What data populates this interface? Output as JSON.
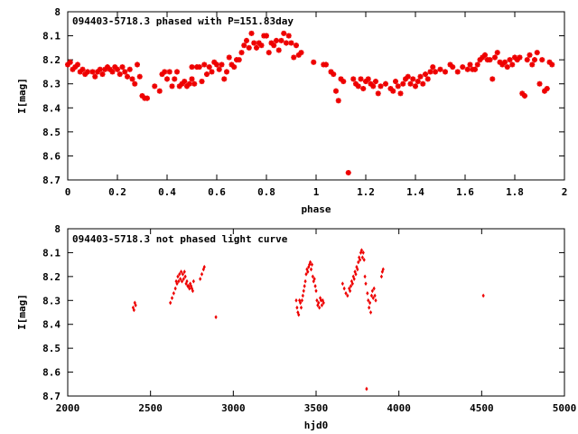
{
  "colors": {
    "points": "#ee0000",
    "frame": "#000000",
    "background": "#ffffff"
  },
  "chart_data": [
    {
      "type": "scatter",
      "title": "094403-5718.3 phased with P=151.83day",
      "xlabel": "phase",
      "ylabel": "I[mag]",
      "xlim": [
        0,
        2
      ],
      "ylim": [
        8.7,
        8
      ],
      "y_inverted": true,
      "grid": false,
      "xticks": [
        "0",
        "0.2",
        "0.4",
        "0.6",
        "0.8",
        "1",
        "1.2",
        "1.4",
        "1.6",
        "1.8",
        "2"
      ],
      "yticks": [
        "8",
        "8.1",
        "8.2",
        "8.3",
        "8.4",
        "8.5",
        "8.6",
        "8.7"
      ],
      "marker": "star",
      "points": [
        [
          0.0,
          8.22
        ],
        [
          0.01,
          8.21
        ],
        [
          0.02,
          8.24
        ],
        [
          0.03,
          8.23
        ],
        [
          0.04,
          8.22
        ],
        [
          0.05,
          8.25
        ],
        [
          0.06,
          8.24
        ],
        [
          0.07,
          8.26
        ],
        [
          0.08,
          8.25
        ],
        [
          0.1,
          8.25
        ],
        [
          0.11,
          8.27
        ],
        [
          0.12,
          8.25
        ],
        [
          0.13,
          8.24
        ],
        [
          0.14,
          8.26
        ],
        [
          0.15,
          8.24
        ],
        [
          0.16,
          8.23
        ],
        [
          0.17,
          8.24
        ],
        [
          0.18,
          8.25
        ],
        [
          0.19,
          8.23
        ],
        [
          0.2,
          8.24
        ],
        [
          0.21,
          8.26
        ],
        [
          0.22,
          8.23
        ],
        [
          0.23,
          8.25
        ],
        [
          0.24,
          8.27
        ],
        [
          0.25,
          8.24
        ],
        [
          0.26,
          8.28
        ],
        [
          0.27,
          8.3
        ],
        [
          0.28,
          8.22
        ],
        [
          0.29,
          8.27
        ],
        [
          0.3,
          8.35
        ],
        [
          0.31,
          8.36
        ],
        [
          0.32,
          8.36
        ],
        [
          0.35,
          8.31
        ],
        [
          0.37,
          8.33
        ],
        [
          0.38,
          8.26
        ],
        [
          0.39,
          8.25
        ],
        [
          0.4,
          8.28
        ],
        [
          0.41,
          8.25
        ],
        [
          0.42,
          8.31
        ],
        [
          0.43,
          8.28
        ],
        [
          0.44,
          8.25
        ],
        [
          0.45,
          8.31
        ],
        [
          0.46,
          8.3
        ],
        [
          0.47,
          8.29
        ],
        [
          0.48,
          8.31
        ],
        [
          0.49,
          8.3
        ],
        [
          0.5,
          8.28
        ],
        [
          0.5,
          8.23
        ],
        [
          0.51,
          8.3
        ],
        [
          0.52,
          8.23
        ],
        [
          0.53,
          8.23
        ],
        [
          0.54,
          8.29
        ],
        [
          0.55,
          8.22
        ],
        [
          0.56,
          8.26
        ],
        [
          0.57,
          8.23
        ],
        [
          0.58,
          8.25
        ],
        [
          0.59,
          8.21
        ],
        [
          0.6,
          8.22
        ],
        [
          0.61,
          8.24
        ],
        [
          0.62,
          8.22
        ],
        [
          0.63,
          8.28
        ],
        [
          0.64,
          8.25
        ],
        [
          0.65,
          8.19
        ],
        [
          0.66,
          8.22
        ],
        [
          0.67,
          8.23
        ],
        [
          0.68,
          8.2
        ],
        [
          0.69,
          8.2
        ],
        [
          0.7,
          8.17
        ],
        [
          0.71,
          8.14
        ],
        [
          0.72,
          8.12
        ],
        [
          0.73,
          8.15
        ],
        [
          0.74,
          8.09
        ],
        [
          0.75,
          8.13
        ],
        [
          0.76,
          8.15
        ],
        [
          0.77,
          8.13
        ],
        [
          0.78,
          8.14
        ],
        [
          0.79,
          8.1
        ],
        [
          0.8,
          8.1
        ],
        [
          0.81,
          8.17
        ],
        [
          0.82,
          8.13
        ],
        [
          0.83,
          8.14
        ],
        [
          0.84,
          8.12
        ],
        [
          0.85,
          8.16
        ],
        [
          0.86,
          8.12
        ],
        [
          0.87,
          8.09
        ],
        [
          0.88,
          8.13
        ],
        [
          0.89,
          8.1
        ],
        [
          0.9,
          8.13
        ],
        [
          0.91,
          8.19
        ],
        [
          0.92,
          8.14
        ],
        [
          0.93,
          8.18
        ],
        [
          0.94,
          8.17
        ],
        [
          0.99,
          8.21
        ],
        [
          1.03,
          8.22
        ],
        [
          1.04,
          8.22
        ],
        [
          1.06,
          8.25
        ],
        [
          1.07,
          8.26
        ],
        [
          1.08,
          8.33
        ],
        [
          1.09,
          8.37
        ],
        [
          1.1,
          8.28
        ],
        [
          1.11,
          8.29
        ],
        [
          1.13,
          8.67
        ],
        [
          1.15,
          8.28
        ],
        [
          1.16,
          8.3
        ],
        [
          1.17,
          8.31
        ],
        [
          1.18,
          8.28
        ],
        [
          1.19,
          8.32
        ],
        [
          1.2,
          8.29
        ],
        [
          1.21,
          8.28
        ],
        [
          1.22,
          8.3
        ],
        [
          1.23,
          8.31
        ],
        [
          1.24,
          8.29
        ],
        [
          1.25,
          8.34
        ],
        [
          1.26,
          8.31
        ],
        [
          1.28,
          8.3
        ],
        [
          1.3,
          8.32
        ],
        [
          1.31,
          8.33
        ],
        [
          1.32,
          8.29
        ],
        [
          1.33,
          8.31
        ],
        [
          1.34,
          8.34
        ],
        [
          1.35,
          8.3
        ],
        [
          1.36,
          8.28
        ],
        [
          1.37,
          8.27
        ],
        [
          1.38,
          8.3
        ],
        [
          1.39,
          8.28
        ],
        [
          1.4,
          8.31
        ],
        [
          1.41,
          8.29
        ],
        [
          1.42,
          8.27
        ],
        [
          1.43,
          8.3
        ],
        [
          1.44,
          8.26
        ],
        [
          1.45,
          8.28
        ],
        [
          1.46,
          8.25
        ],
        [
          1.47,
          8.23
        ],
        [
          1.48,
          8.25
        ],
        [
          1.5,
          8.24
        ],
        [
          1.52,
          8.25
        ],
        [
          1.54,
          8.22
        ],
        [
          1.55,
          8.23
        ],
        [
          1.57,
          8.25
        ],
        [
          1.59,
          8.23
        ],
        [
          1.61,
          8.24
        ],
        [
          1.62,
          8.22
        ],
        [
          1.63,
          8.24
        ],
        [
          1.64,
          8.24
        ],
        [
          1.65,
          8.22
        ],
        [
          1.66,
          8.2
        ],
        [
          1.67,
          8.19
        ],
        [
          1.68,
          8.18
        ],
        [
          1.69,
          8.2
        ],
        [
          1.7,
          8.2
        ],
        [
          1.71,
          8.28
        ],
        [
          1.72,
          8.19
        ],
        [
          1.73,
          8.17
        ],
        [
          1.74,
          8.21
        ],
        [
          1.75,
          8.22
        ],
        [
          1.76,
          8.21
        ],
        [
          1.77,
          8.23
        ],
        [
          1.78,
          8.2
        ],
        [
          1.79,
          8.22
        ],
        [
          1.8,
          8.19
        ],
        [
          1.81,
          8.2
        ],
        [
          1.82,
          8.19
        ],
        [
          1.83,
          8.34
        ],
        [
          1.84,
          8.35
        ],
        [
          1.85,
          8.2
        ],
        [
          1.86,
          8.18
        ],
        [
          1.87,
          8.22
        ],
        [
          1.88,
          8.2
        ],
        [
          1.89,
          8.17
        ],
        [
          1.9,
          8.3
        ],
        [
          1.91,
          8.2
        ],
        [
          1.92,
          8.33
        ],
        [
          1.93,
          8.32
        ],
        [
          1.94,
          8.21
        ],
        [
          1.95,
          8.22
        ]
      ]
    },
    {
      "type": "scatter",
      "title": "094403-5718.3 not phased light curve",
      "xlabel": "hjd0",
      "ylabel": "I[mag]",
      "xlim": [
        2000,
        5000
      ],
      "ylim": [
        8.7,
        8
      ],
      "y_inverted": true,
      "grid": false,
      "xticks": [
        "2000",
        "2500",
        "3000",
        "3500",
        "4000",
        "4500",
        "5000"
      ],
      "yticks": [
        "8",
        "8.1",
        "8.2",
        "8.3",
        "8.4",
        "8.5",
        "8.6",
        "8.7"
      ],
      "marker": "diamond",
      "points": [
        [
          2395,
          8.33
        ],
        [
          2400,
          8.34
        ],
        [
          2405,
          8.31
        ],
        [
          2410,
          8.32
        ],
        [
          2620,
          8.31
        ],
        [
          2630,
          8.29
        ],
        [
          2640,
          8.27
        ],
        [
          2650,
          8.25
        ],
        [
          2655,
          8.22
        ],
        [
          2660,
          8.23
        ],
        [
          2665,
          8.2
        ],
        [
          2670,
          8.22
        ],
        [
          2675,
          8.19
        ],
        [
          2680,
          8.21
        ],
        [
          2685,
          8.18
        ],
        [
          2690,
          8.22
        ],
        [
          2695,
          8.19
        ],
        [
          2700,
          8.21
        ],
        [
          2705,
          8.18
        ],
        [
          2710,
          8.2
        ],
        [
          2715,
          8.23
        ],
        [
          2720,
          8.22
        ],
        [
          2725,
          8.24
        ],
        [
          2730,
          8.24
        ],
        [
          2735,
          8.25
        ],
        [
          2740,
          8.23
        ],
        [
          2745,
          8.24
        ],
        [
          2750,
          8.25
        ],
        [
          2755,
          8.26
        ],
        [
          2760,
          8.22
        ],
        [
          2800,
          8.21
        ],
        [
          2810,
          8.19
        ],
        [
          2820,
          8.17
        ],
        [
          2825,
          8.16
        ],
        [
          2895,
          8.37
        ],
        [
          3380,
          8.3
        ],
        [
          3385,
          8.33
        ],
        [
          3390,
          8.35
        ],
        [
          3395,
          8.36
        ],
        [
          3400,
          8.3
        ],
        [
          3405,
          8.31
        ],
        [
          3410,
          8.33
        ],
        [
          3415,
          8.3
        ],
        [
          3420,
          8.28
        ],
        [
          3425,
          8.26
        ],
        [
          3430,
          8.24
        ],
        [
          3435,
          8.22
        ],
        [
          3440,
          8.19
        ],
        [
          3445,
          8.17
        ],
        [
          3450,
          8.18
        ],
        [
          3455,
          8.16
        ],
        [
          3460,
          8.15
        ],
        [
          3465,
          8.14
        ],
        [
          3470,
          8.17
        ],
        [
          3475,
          8.15
        ],
        [
          3480,
          8.2
        ],
        [
          3485,
          8.22
        ],
        [
          3490,
          8.21
        ],
        [
          3495,
          8.24
        ],
        [
          3500,
          8.26
        ],
        [
          3505,
          8.3
        ],
        [
          3510,
          8.32
        ],
        [
          3515,
          8.31
        ],
        [
          3520,
          8.33
        ],
        [
          3525,
          8.29
        ],
        [
          3530,
          8.3
        ],
        [
          3535,
          8.32
        ],
        [
          3540,
          8.3
        ],
        [
          3545,
          8.31
        ],
        [
          3660,
          8.23
        ],
        [
          3670,
          8.25
        ],
        [
          3680,
          8.27
        ],
        [
          3690,
          8.28
        ],
        [
          3700,
          8.25
        ],
        [
          3705,
          8.26
        ],
        [
          3710,
          8.24
        ],
        [
          3715,
          8.22
        ],
        [
          3720,
          8.23
        ],
        [
          3725,
          8.2
        ],
        [
          3730,
          8.21
        ],
        [
          3735,
          8.18
        ],
        [
          3740,
          8.19
        ],
        [
          3745,
          8.16
        ],
        [
          3750,
          8.17
        ],
        [
          3755,
          8.14
        ],
        [
          3760,
          8.12
        ],
        [
          3765,
          8.13
        ],
        [
          3770,
          8.1
        ],
        [
          3775,
          8.09
        ],
        [
          3780,
          8.12
        ],
        [
          3785,
          8.1
        ],
        [
          3790,
          8.13
        ],
        [
          3795,
          8.2
        ],
        [
          3800,
          8.23
        ],
        [
          3805,
          8.67
        ],
        [
          3810,
          8.27
        ],
        [
          3815,
          8.3
        ],
        [
          3820,
          8.33
        ],
        [
          3825,
          8.31
        ],
        [
          3830,
          8.35
        ],
        [
          3835,
          8.28
        ],
        [
          3840,
          8.26
        ],
        [
          3845,
          8.29
        ],
        [
          3850,
          8.25
        ],
        [
          3855,
          8.28
        ],
        [
          3860,
          8.3
        ],
        [
          3895,
          8.2
        ],
        [
          3900,
          8.18
        ],
        [
          3905,
          8.17
        ],
        [
          4510,
          8.28
        ]
      ]
    }
  ]
}
